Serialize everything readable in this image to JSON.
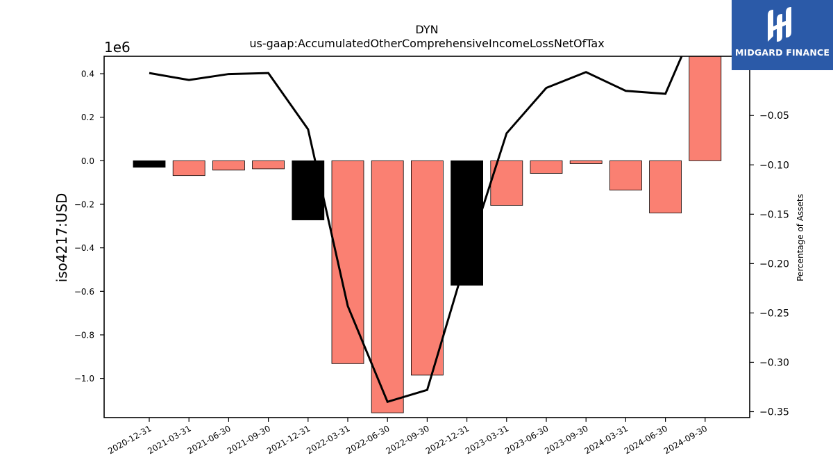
{
  "brand": {
    "name": "MIDGARD FINANCE",
    "color": "#2b5aa8",
    "logo_icon": "midgard-m-icon"
  },
  "chart_data": {
    "type": "bar",
    "title": "DYN",
    "subtitle": "us-gaap:AccumulatedOtherComprehensiveIncomeLossNetOfTax",
    "ylabel": "iso4217:USD",
    "y_multiplier_label": "1e6",
    "y2label": "Percentage of Assets",
    "categories": [
      "2020-12-31",
      "2021-03-31",
      "2021-06-30",
      "2021-09-30",
      "2021-12-31",
      "2022-03-31",
      "2022-06-30",
      "2022-09-30",
      "2022-12-31",
      "2023-03-31",
      "2023-06-30",
      "2023-09-30",
      "2024-03-31",
      "2024-06-30",
      "2024-09-30"
    ],
    "series": [
      {
        "values": [
          -0.03,
          -0.068,
          -0.043,
          -0.037,
          -0.272,
          -0.932,
          -1.158,
          -0.985,
          -0.572,
          -0.205,
          -0.058,
          -0.013,
          -0.135,
          -0.24,
          0.48
        ],
        "kind": "bar",
        "axis": "left"
      },
      {
        "values": [
          -0.007,
          -0.014,
          -0.008,
          -0.007,
          -0.064,
          -0.243,
          -0.34,
          -0.328,
          -0.193,
          -0.068,
          -0.022,
          -0.006,
          -0.025,
          -0.028,
          0.065
        ],
        "kind": "line",
        "axis": "right"
      }
    ],
    "bar_colors": [
      "#000000",
      "#fa8072",
      "#fa8072",
      "#fa8072",
      "#000000",
      "#fa8072",
      "#fa8072",
      "#fa8072",
      "#000000",
      "#fa8072",
      "#fa8072",
      "#fa8072",
      "#fa8072",
      "#fa8072",
      "#fa8072"
    ],
    "line_color": "#000000",
    "ylim": [
      -1.18,
      0.48
    ],
    "y2lim": [
      -0.356,
      0.01
    ],
    "yticks": [
      0.4,
      0.2,
      0.0,
      -0.2,
      -0.4,
      -0.6,
      -0.8,
      -1.0
    ],
    "ytick_labels": [
      "0.4",
      "0.2",
      "0.0",
      "−0.2",
      "−0.4",
      "−0.6",
      "−0.8",
      "−1.0"
    ],
    "y2ticks": [
      0.0,
      -0.05,
      -0.1,
      -0.15,
      -0.2,
      -0.25,
      -0.3,
      -0.35
    ],
    "y2tick_labels": [
      "0.00",
      "−0.05",
      "−0.10",
      "−0.15",
      "−0.20",
      "−0.25",
      "−0.30",
      "−0.35"
    ],
    "grid": false,
    "legend": "none"
  }
}
